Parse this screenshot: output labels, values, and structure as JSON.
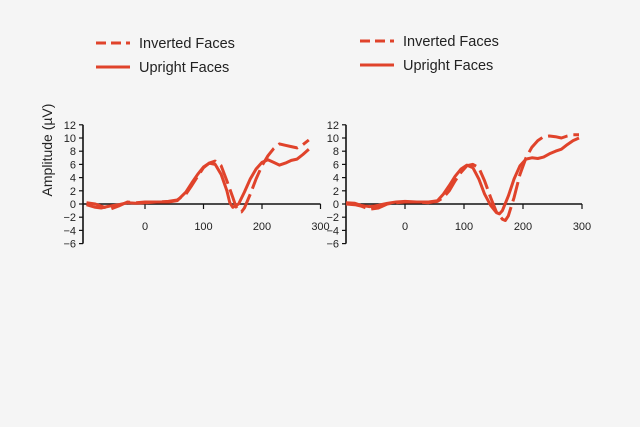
{
  "colors": {
    "series": "#e0432b",
    "background": "#f5f5f5",
    "axis": "#111111"
  },
  "chart_data": [
    {
      "type": "line",
      "panel": "left",
      "ylabel": "Amplitude (µV)",
      "xlabel": "",
      "xlim": [
        -100,
        300
      ],
      "ylim": [
        -6,
        12
      ],
      "xticks": [
        0,
        100,
        200,
        300
      ],
      "yticks": [
        -6,
        -4,
        -2,
        0,
        2,
        4,
        6,
        8,
        10,
        12
      ],
      "legend_position": "top-left",
      "series": [
        {
          "name": "Inverted Faces",
          "style": "dashed",
          "x": [
            -100,
            -85,
            -75,
            -60,
            -45,
            -30,
            -15,
            0,
            20,
            40,
            55,
            70,
            80,
            90,
            100,
            110,
            120,
            130,
            140,
            150,
            155,
            160,
            165,
            170,
            180,
            190,
            200,
            210,
            220,
            230,
            240,
            250,
            260,
            270,
            280
          ],
          "y": [
            0.2,
            0,
            -0.3,
            -0.8,
            -0.3,
            0.3,
            0.2,
            0.3,
            0.3,
            0.4,
            0.6,
            1.5,
            2.8,
            4.2,
            5.5,
            6.2,
            6.5,
            5.8,
            3.5,
            1.0,
            -0.3,
            -1.0,
            -1.2,
            -0.6,
            1.5,
            3.8,
            5.8,
            7.3,
            8.4,
            9.1,
            8.9,
            8.7,
            8.5,
            9.0,
            9.7
          ]
        },
        {
          "name": "Upright Faces",
          "style": "solid",
          "x": [
            -100,
            -85,
            -75,
            -60,
            -45,
            -30,
            -15,
            0,
            20,
            40,
            55,
            70,
            80,
            90,
            100,
            110,
            120,
            130,
            140,
            145,
            150,
            160,
            170,
            180,
            190,
            200,
            210,
            220,
            230,
            240,
            250,
            260,
            270,
            280
          ],
          "y": [
            -0.1,
            -0.5,
            -0.6,
            -0.3,
            -0.1,
            0.2,
            0.1,
            0.2,
            0.3,
            0.3,
            0.5,
            1.8,
            3.2,
            4.5,
            5.6,
            6.2,
            6.0,
            4.5,
            2.0,
            0.2,
            -0.5,
            0.0,
            1.8,
            3.8,
            5.3,
            6.3,
            6.7,
            6.3,
            5.9,
            6.2,
            6.6,
            6.8,
            7.5,
            8.3
          ]
        }
      ]
    },
    {
      "type": "line",
      "panel": "right",
      "ylabel": "",
      "xlabel": "",
      "xlim": [
        -100,
        300
      ],
      "ylim": [
        -6,
        12
      ],
      "xticks": [
        0,
        100,
        200,
        300
      ],
      "yticks": [
        -6,
        -4,
        -2,
        0,
        2,
        4,
        6,
        8,
        10,
        12
      ],
      "legend_position": "top-left",
      "series": [
        {
          "name": "Inverted Faces",
          "style": "dashed",
          "x": [
            -100,
            -85,
            -75,
            -60,
            -45,
            -30,
            -15,
            0,
            20,
            40,
            55,
            65,
            75,
            85,
            95,
            105,
            115,
            125,
            135,
            145,
            155,
            165,
            170,
            175,
            185,
            195,
            205,
            215,
            225,
            235,
            245,
            255,
            265,
            275,
            285,
            295
          ],
          "y": [
            0,
            -0.1,
            -0.3,
            -0.8,
            -0.6,
            0,
            0.2,
            0.3,
            0.3,
            0.2,
            0.4,
            1.0,
            2.0,
            3.5,
            4.8,
            5.8,
            6.0,
            5.5,
            3.5,
            1.0,
            -1.2,
            -2.3,
            -2.5,
            -1.8,
            1.0,
            4.5,
            7.0,
            8.6,
            9.6,
            10.2,
            10.3,
            10.2,
            10.0,
            10.3,
            10.5,
            10.5
          ]
        },
        {
          "name": "Upright Faces",
          "style": "solid",
          "x": [
            -100,
            -85,
            -75,
            -60,
            -45,
            -30,
            -15,
            0,
            20,
            40,
            55,
            65,
            75,
            85,
            95,
            105,
            115,
            125,
            135,
            145,
            155,
            160,
            165,
            175,
            185,
            195,
            205,
            215,
            225,
            235,
            245,
            255,
            265,
            275,
            285,
            295
          ],
          "y": [
            0.2,
            0.1,
            -0.2,
            -0.4,
            -0.2,
            0.1,
            0.3,
            0.4,
            0.3,
            0.3,
            0.5,
            1.5,
            2.8,
            4.2,
            5.3,
            5.9,
            5.5,
            3.8,
            1.5,
            -0.2,
            -1.3,
            -1.5,
            -1.0,
            1.2,
            3.8,
            5.8,
            6.8,
            7.0,
            6.9,
            7.1,
            7.6,
            8.0,
            8.3,
            9.0,
            9.6,
            10.0
          ]
        }
      ]
    }
  ]
}
